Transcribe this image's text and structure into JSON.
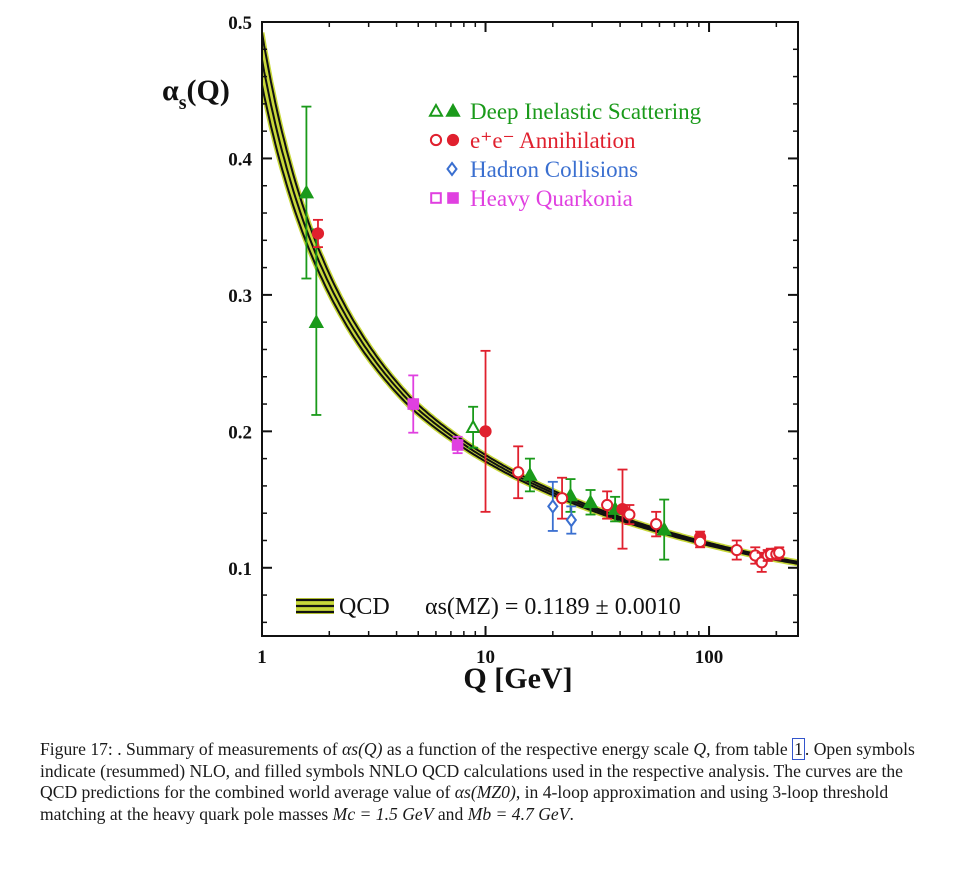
{
  "chart_data": {
    "type": "scatter",
    "xlabel": "Q [GeV]",
    "ylabel": "αs(Q)",
    "x_scale": "log",
    "xlim": [
      1,
      250
    ],
    "ylim": [
      0.05,
      0.5
    ],
    "x_ticks": [
      {
        "value": 1,
        "label": "1"
      },
      {
        "value": 10,
        "label": "10"
      },
      {
        "value": 100,
        "label": "100"
      }
    ],
    "y_ticks": [
      {
        "value": 0.1,
        "label": "0.1"
      },
      {
        "value": 0.2,
        "label": "0.2"
      },
      {
        "value": 0.3,
        "label": "0.3"
      },
      {
        "value": 0.4,
        "label": "0.4"
      },
      {
        "value": 0.5,
        "label": "0.5"
      }
    ],
    "legend_position": "top-right",
    "colors": {
      "dis": "#1a9a1a",
      "ee": "#e0202e",
      "hadron": "#3a6fd0",
      "quarkonia": "#e040e0",
      "band": "#c8d83a",
      "curve": "#111111"
    },
    "series": [
      {
        "name": "Deep Inelastic Scattering",
        "color_key": "dis",
        "symbol": "triangle",
        "points": [
          {
            "x": 1.58,
            "y": 0.375,
            "err": 0.063,
            "filled": true
          },
          {
            "x": 1.75,
            "y": 0.28,
            "err": 0.068,
            "filled": true
          },
          {
            "x": 8.8,
            "y": 0.203,
            "err": 0.015,
            "filled": false
          },
          {
            "x": 15.8,
            "y": 0.168,
            "err": 0.012,
            "filled": true
          },
          {
            "x": 24.0,
            "y": 0.153,
            "err": 0.012,
            "filled": true
          },
          {
            "x": 29.5,
            "y": 0.148,
            "err": 0.009,
            "filled": true
          },
          {
            "x": 38.0,
            "y": 0.143,
            "err": 0.009,
            "filled": true
          },
          {
            "x": 63.0,
            "y": 0.128,
            "err": 0.022,
            "filled": true
          }
        ]
      },
      {
        "name": "e⁺e⁻ Annihilation",
        "color_key": "ee",
        "symbol": "circle",
        "points": [
          {
            "x": 1.78,
            "y": 0.345,
            "err": 0.01,
            "filled": true
          },
          {
            "x": 10.0,
            "y": 0.2,
            "err": 0.059,
            "filled": true
          },
          {
            "x": 14.0,
            "y": 0.17,
            "err": 0.019,
            "filled": false
          },
          {
            "x": 22.0,
            "y": 0.151,
            "err": 0.015,
            "filled": false
          },
          {
            "x": 35.0,
            "y": 0.146,
            "err": 0.01,
            "filled": false
          },
          {
            "x": 41.0,
            "y": 0.143,
            "err": 0.029,
            "filled": true
          },
          {
            "x": 44.0,
            "y": 0.139,
            "err": 0.007,
            "filled": false
          },
          {
            "x": 58.0,
            "y": 0.132,
            "err": 0.009,
            "filled": false
          },
          {
            "x": 91.2,
            "y": 0.1225,
            "err": 0.004,
            "filled": true
          },
          {
            "x": 91.2,
            "y": 0.119,
            "err": 0.004,
            "filled": false
          },
          {
            "x": 133.0,
            "y": 0.113,
            "err": 0.007,
            "filled": false
          },
          {
            "x": 161.0,
            "y": 0.109,
            "err": 0.006,
            "filled": false
          },
          {
            "x": 172.0,
            "y": 0.104,
            "err": 0.007,
            "filled": false
          },
          {
            "x": 183.0,
            "y": 0.109,
            "err": 0.004,
            "filled": false
          },
          {
            "x": 189.0,
            "y": 0.11,
            "err": 0.004,
            "filled": false
          },
          {
            "x": 200.0,
            "y": 0.11,
            "err": 0.004,
            "filled": false
          },
          {
            "x": 206.0,
            "y": 0.111,
            "err": 0.004,
            "filled": false
          }
        ]
      },
      {
        "name": "Hadron Collisions",
        "color_key": "hadron",
        "symbol": "diamond",
        "points": [
          {
            "x": 20.0,
            "y": 0.145,
            "err": 0.018,
            "filled": false
          },
          {
            "x": 24.2,
            "y": 0.135,
            "err": 0.01,
            "filled": false
          }
        ]
      },
      {
        "name": "Heavy Quarkonia",
        "color_key": "quarkonia",
        "symbol": "square",
        "points": [
          {
            "x": 4.75,
            "y": 0.22,
            "err": 0.021,
            "filled": true
          },
          {
            "x": 7.5,
            "y": 0.19,
            "err": 0.006,
            "filled": true
          }
        ]
      }
    ],
    "theory_curve": {
      "name": "QCD",
      "label": "αs(MZ) = 0.1189 ± 0.0010",
      "alpha_s_mz": 0.1189,
      "uncertainty": 0.001,
      "mz": 91.19
    }
  },
  "legend": {
    "items": [
      {
        "label": "Deep Inelastic Scattering",
        "color_key": "dis",
        "symbol": "triangle"
      },
      {
        "label": "e⁺e⁻ Annihilation",
        "color_key": "ee",
        "symbol": "circle"
      },
      {
        "label": "Hadron Collisions",
        "color_key": "hadron",
        "symbol": "diamond"
      },
      {
        "label": "Heavy Quarkonia",
        "color_key": "quarkonia",
        "symbol": "square"
      }
    ]
  },
  "qcd_label": {
    "name": "QCD",
    "formula": "αs(MZ) = 0.1189 ± 0.0010"
  },
  "caption": {
    "prefix": "Figure 17: . Summary of measurements of",
    "symbol_alpha_q": "αs(Q)",
    "part1": "as a function of the respective energy scale",
    "symbol_q": "Q",
    "part2": ", from table",
    "table_ref": "1",
    "part3": ". Open symbols indicate (resummed) NLO, and filled symbols NNLO QCD calculations used in the respective analysis. The curves are the QCD predictions for the combined world average value of",
    "symbol_alpha_mz0": "αs(MZ0)",
    "part4": ", in 4-loop approximation and using 3-loop threshold matching at the heavy quark pole masses",
    "mc": "Mc = 1.5 GeV",
    "and": "and",
    "mb": "Mb = 4.7 GeV",
    "end": "."
  }
}
